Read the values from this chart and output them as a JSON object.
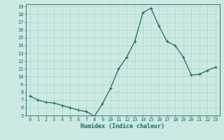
{
  "x": [
    0,
    1,
    2,
    3,
    4,
    5,
    6,
    7,
    8,
    9,
    10,
    11,
    12,
    13,
    14,
    15,
    16,
    17,
    18,
    19,
    20,
    21,
    22,
    23
  ],
  "y": [
    7.5,
    7.0,
    6.7,
    6.6,
    6.3,
    6.0,
    5.7,
    5.5,
    4.9,
    6.5,
    8.5,
    11.0,
    12.5,
    14.5,
    18.2,
    18.8,
    16.5,
    14.5,
    14.0,
    12.5,
    10.2,
    10.3,
    10.8,
    11.2
  ],
  "line_color": "#1a6b5a",
  "marker": "+",
  "marker_size": 3,
  "marker_lw": 0.8,
  "background_color": "#cce9e5",
  "grid_color": "#b0d4cf",
  "xlabel": "Humidex (Indice chaleur)",
  "ylabel": "",
  "title": "",
  "ylim": [
    5,
    19
  ],
  "xlim": [
    -0.5,
    23.5
  ],
  "yticks": [
    5,
    6,
    7,
    8,
    9,
    10,
    11,
    12,
    13,
    14,
    15,
    16,
    17,
    18,
    19
  ],
  "xticks": [
    0,
    1,
    2,
    3,
    4,
    5,
    6,
    7,
    8,
    9,
    10,
    11,
    12,
    13,
    14,
    15,
    16,
    17,
    18,
    19,
    20,
    21,
    22,
    23
  ],
  "tick_color": "#1a6b5a",
  "axis_color": "#1a6b5a",
  "font_color": "#1a6b5a",
  "xlabel_fontsize": 6.0,
  "tick_fontsize": 5.0,
  "line_width": 0.9
}
